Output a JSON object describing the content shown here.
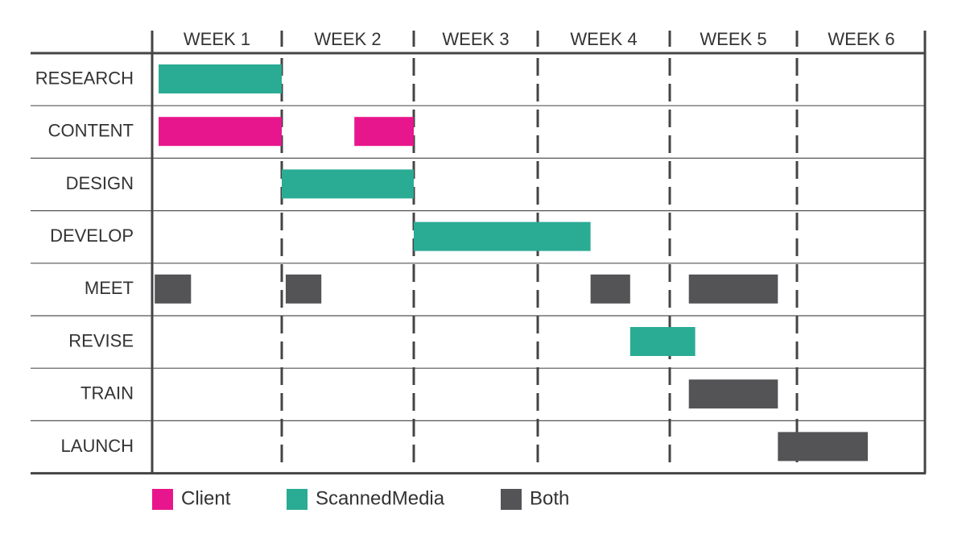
{
  "chart_data": {
    "type": "gantt",
    "title": "",
    "xlabel": "",
    "ylabel": "",
    "x_unit": "weeks",
    "xlim": [
      0,
      6
    ],
    "columns": [
      "WEEK 1",
      "WEEK 2",
      "WEEK 3",
      "WEEK 4",
      "WEEK 5",
      "WEEK 6"
    ],
    "rows": [
      "RESEARCH",
      "CONTENT",
      "DESIGN",
      "DEVELOP",
      "MEET",
      "REVISE",
      "TRAIN",
      "LAUNCH"
    ],
    "legend": [
      {
        "key": "client",
        "label": "Client",
        "color": "#e8168c"
      },
      {
        "key": "scannedmedia",
        "label": "ScannedMedia",
        "color": "#2aab94"
      },
      {
        "key": "both",
        "label": "Both",
        "color": "#545456"
      }
    ],
    "legend_position": "bottom",
    "grid": true,
    "tasks": [
      {
        "row": "RESEARCH",
        "party": "scannedmedia",
        "start": 0.05,
        "end": 1.0
      },
      {
        "row": "CONTENT",
        "party": "client",
        "start": 0.05,
        "end": 1.0
      },
      {
        "row": "CONTENT",
        "party": "client",
        "start": 1.55,
        "end": 2.0
      },
      {
        "row": "DESIGN",
        "party": "scannedmedia",
        "start": 1.0,
        "end": 2.0
      },
      {
        "row": "DEVELOP",
        "party": "scannedmedia",
        "start": 2.0,
        "end": 3.4
      },
      {
        "row": "MEET",
        "party": "both",
        "start": 0.02,
        "end": 0.3
      },
      {
        "row": "MEET",
        "party": "both",
        "start": 1.03,
        "end": 1.3
      },
      {
        "row": "MEET",
        "party": "both",
        "start": 3.4,
        "end": 3.7
      },
      {
        "row": "MEET",
        "party": "both",
        "start": 4.15,
        "end": 4.85
      },
      {
        "row": "REVISE",
        "party": "scannedmedia",
        "start": 3.7,
        "end": 4.2
      },
      {
        "row": "TRAIN",
        "party": "both",
        "start": 4.15,
        "end": 4.85
      },
      {
        "row": "LAUNCH",
        "party": "both",
        "start": 4.85,
        "end": 5.55
      }
    ]
  }
}
